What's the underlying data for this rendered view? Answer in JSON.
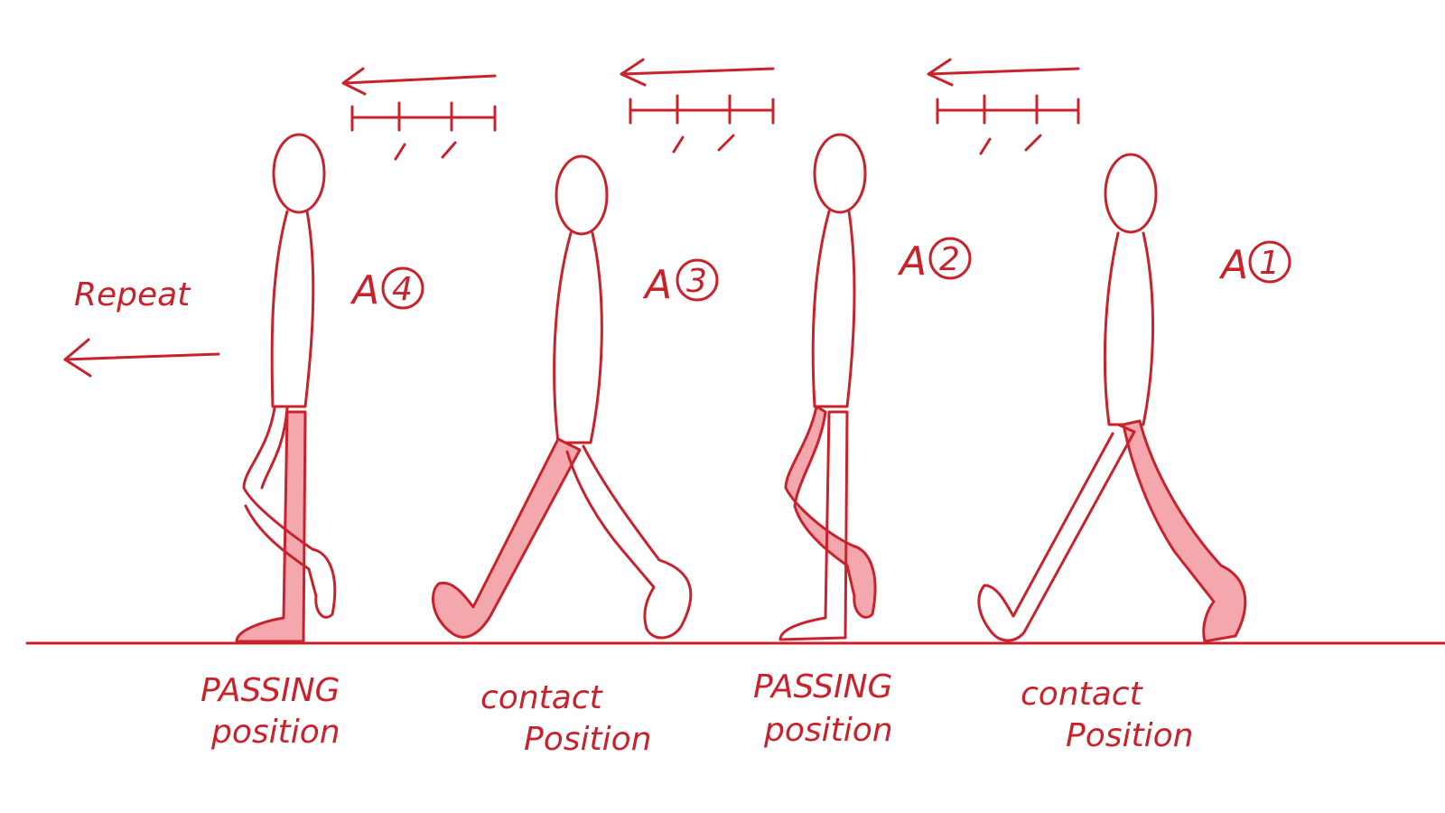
{
  "repeat_label": "Repeat",
  "figures": [
    {
      "tag_letter": "A",
      "tag_number": "4",
      "caption_line1": "PASSING",
      "caption_line2": "position"
    },
    {
      "tag_letter": "A",
      "tag_number": "3",
      "caption_line1": "contact",
      "caption_line2": "Position"
    },
    {
      "tag_letter": "A",
      "tag_number": "2",
      "caption_line1": "PASSING",
      "caption_line2": "position"
    },
    {
      "tag_letter": "A",
      "tag_number": "1",
      "caption_line1": "contact",
      "caption_line2": "Position"
    }
  ],
  "colors": {
    "ink": "#c8232c",
    "leg_fill": "#f4a7ad",
    "background": "#ffffff"
  }
}
